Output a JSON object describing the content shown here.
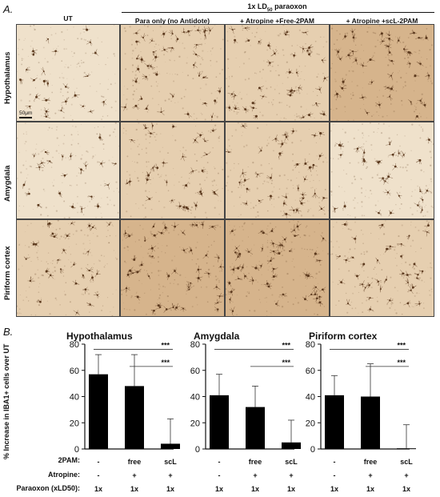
{
  "panel_a": {
    "letter": "A.",
    "header": "1x LD",
    "header_sub": "50",
    "header_tail": " paraoxon",
    "columns": [
      "UT",
      "Para only (no Antidote)",
      "+ Atropine +Free-2PAM",
      "+ Atropine +scL-2PAM"
    ],
    "rows": [
      "Hypothalamus",
      "Amygdala",
      "Piriform cortex"
    ],
    "scale_bar": "50μm",
    "tissue_colors": {
      "light": "#efe1cb",
      "medium": "#e6cfb0",
      "dark": "#d6b48c",
      "cell": "#5c3a1e"
    }
  },
  "panel_b": {
    "letter": "B.",
    "ylabel": "% Increase in IBA1+ cells over UT",
    "row_labels": [
      "2PAM:",
      "Atropine:",
      "Paraoxon (xLD50):"
    ],
    "significance": "***"
  },
  "chart_data": [
    {
      "type": "bar",
      "title": "Hypothalamus",
      "categories": [
        "-",
        "free",
        "scL"
      ],
      "values": [
        57,
        48,
        4
      ],
      "errors": [
        15,
        24,
        19
      ],
      "ylim": [
        0,
        80
      ],
      "yticks": [
        0,
        20,
        40,
        60,
        80
      ],
      "atropine": [
        "-",
        "+",
        "+"
      ],
      "paraoxon": [
        "1x",
        "1x",
        "1x"
      ],
      "significance": [
        {
          "from": 0,
          "to": 2,
          "label": "***"
        },
        {
          "from": 1,
          "to": 2,
          "label": "***"
        }
      ]
    },
    {
      "type": "bar",
      "title": "Amygdala",
      "categories": [
        "-",
        "free",
        "scL"
      ],
      "values": [
        41,
        32,
        5
      ],
      "errors": [
        16,
        16,
        17
      ],
      "ylim": [
        0,
        80
      ],
      "yticks": [
        0,
        20,
        40,
        60,
        80
      ],
      "atropine": [
        "-",
        "+",
        "+"
      ],
      "paraoxon": [
        "1x",
        "1x",
        "1x"
      ],
      "significance": [
        {
          "from": 0,
          "to": 2,
          "label": "***"
        },
        {
          "from": 1,
          "to": 2,
          "label": "***"
        }
      ]
    },
    {
      "type": "bar",
      "title": "Piriform cortex",
      "categories": [
        "-",
        "free",
        "scL"
      ],
      "values": [
        41,
        40,
        0.5
      ],
      "errors": [
        15,
        25,
        18
      ],
      "ylim": [
        0,
        80
      ],
      "yticks": [
        0,
        20,
        40,
        60,
        80
      ],
      "atropine": [
        "-",
        "+",
        "+"
      ],
      "paraoxon": [
        "1x",
        "1x",
        "1x"
      ],
      "significance": [
        {
          "from": 0,
          "to": 2,
          "label": "***"
        },
        {
          "from": 1,
          "to": 2,
          "label": "***"
        }
      ]
    }
  ]
}
